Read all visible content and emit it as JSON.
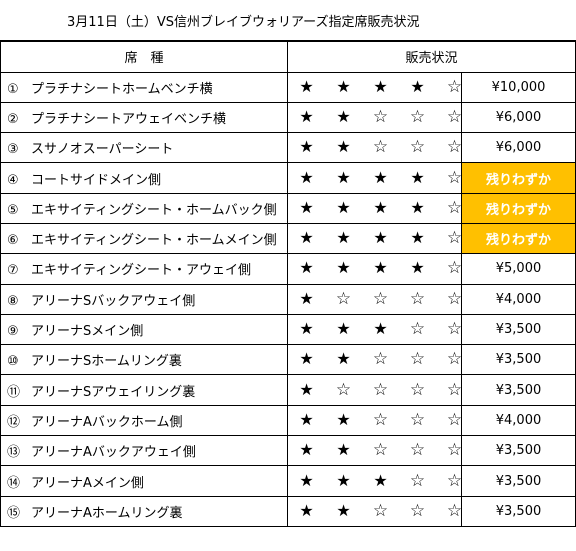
{
  "title": "3月11日（土）VS信州ブレイブウォリアーズ指定席販売状況",
  "headers": {
    "seat_type": "席　種",
    "status": "販売状況"
  },
  "star_glyphs": {
    "filled": "★",
    "empty": "☆"
  },
  "rows": [
    {
      "num": "①",
      "name": "プラチナシートホームベンチ横",
      "stars": 4,
      "price": "¥10,000",
      "low_stock": false
    },
    {
      "num": "②",
      "name": "プラチナシートアウェイベンチ横",
      "stars": 2,
      "price": "¥6,000",
      "low_stock": false
    },
    {
      "num": "③",
      "name": "スサノオスーパーシート",
      "stars": 2,
      "price": "¥6,000",
      "low_stock": false
    },
    {
      "num": "④",
      "name": "コートサイドメイン側",
      "stars": 4,
      "price": "残りわずか",
      "low_stock": true
    },
    {
      "num": "⑤",
      "name": "エキサイティングシート・ホームバック側",
      "stars": 4,
      "price": "残りわずか",
      "low_stock": true
    },
    {
      "num": "⑥",
      "name": "エキサイティングシート・ホームメイン側",
      "stars": 4,
      "price": "残りわずか",
      "low_stock": true
    },
    {
      "num": "⑦",
      "name": "エキサイティングシート・アウェイ側",
      "stars": 4,
      "price": "¥5,000",
      "low_stock": false
    },
    {
      "num": "⑧",
      "name": "アリーナSバックアウェイ側",
      "stars": 1,
      "price": "¥4,000",
      "low_stock": false
    },
    {
      "num": "⑨",
      "name": "アリーナSメイン側",
      "stars": 3,
      "price": "¥3,500",
      "low_stock": false
    },
    {
      "num": "⑩",
      "name": "アリーナSホームリング裏",
      "stars": 2,
      "price": "¥3,500",
      "low_stock": false
    },
    {
      "num": "⑪",
      "name": "アリーナSアウェイリング裏",
      "stars": 1,
      "price": "¥3,500",
      "low_stock": false
    },
    {
      "num": "⑫",
      "name": "アリーナAバックホーム側",
      "stars": 2,
      "price": "¥4,000",
      "low_stock": false
    },
    {
      "num": "⑬",
      "name": "アリーナAバックアウェイ側",
      "stars": 2,
      "price": "¥3,500",
      "low_stock": false
    },
    {
      "num": "⑭",
      "name": "アリーナAメイン側",
      "stars": 3,
      "price": "¥3,500",
      "low_stock": false
    },
    {
      "num": "⑮",
      "name": "アリーナAホームリング裏",
      "stars": 2,
      "price": "¥3,500",
      "low_stock": false
    }
  ],
  "max_stars": 5,
  "colors": {
    "low_stock_bg": "#ffc000",
    "low_stock_text": "#ffffff"
  }
}
